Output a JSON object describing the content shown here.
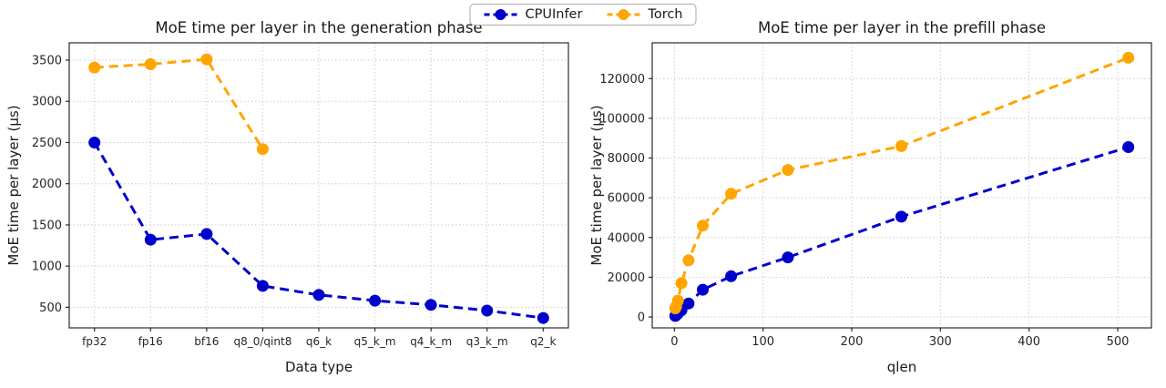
{
  "legend": {
    "items": [
      {
        "label": "CPUInfer",
        "color": "#0000cd"
      },
      {
        "label": "Torch",
        "color": "#ffa500"
      }
    ]
  },
  "chart_data": [
    {
      "type": "line",
      "title": "MoE time per layer in the generation phase",
      "xlabel": "Data type",
      "ylabel": "MoE time per layer (µs)",
      "categories": [
        "fp32",
        "fp16",
        "bf16",
        "q8_0/qint8",
        "q6_k",
        "q5_k_m",
        "q4_k_m",
        "q3_k_m",
        "q2_k"
      ],
      "yticks": [
        500,
        1000,
        1500,
        2000,
        2500,
        3000,
        3500
      ],
      "ylim": [
        250,
        3710
      ],
      "grid": true,
      "legend_position": "top-center",
      "series": [
        {
          "name": "CPUInfer",
          "color": "#0000cd",
          "values": [
            2500,
            1320,
            1390,
            760,
            650,
            580,
            530,
            460,
            370
          ]
        },
        {
          "name": "Torch",
          "color": "#ffa500",
          "values": [
            3410,
            3450,
            3510,
            2420,
            null,
            null,
            null,
            null,
            null
          ]
        }
      ]
    },
    {
      "type": "line",
      "title": "MoE time per layer in the prefill phase",
      "xlabel": "qlen",
      "ylabel": "MoE time per layer (µs)",
      "x": [
        1,
        2,
        4,
        8,
        16,
        32,
        64,
        128,
        256,
        512
      ],
      "xticks": [
        0,
        100,
        200,
        300,
        400,
        500
      ],
      "xlim": [
        -25,
        538
      ],
      "yticks": [
        0,
        20000,
        40000,
        60000,
        80000,
        100000,
        120000
      ],
      "ylim": [
        -5500,
        138000
      ],
      "grid": true,
      "legend_position": "top-center",
      "series": [
        {
          "name": "CPUInfer",
          "color": "#0000cd",
          "values": [
            500,
            900,
            1700,
            3400,
            6800,
            13700,
            20500,
            30000,
            50500,
            85500
          ]
        },
        {
          "name": "Torch",
          "color": "#ffa500",
          "values": [
            4300,
            5300,
            8200,
            17000,
            28500,
            46000,
            62000,
            74000,
            86000,
            130500
          ]
        }
      ]
    }
  ]
}
